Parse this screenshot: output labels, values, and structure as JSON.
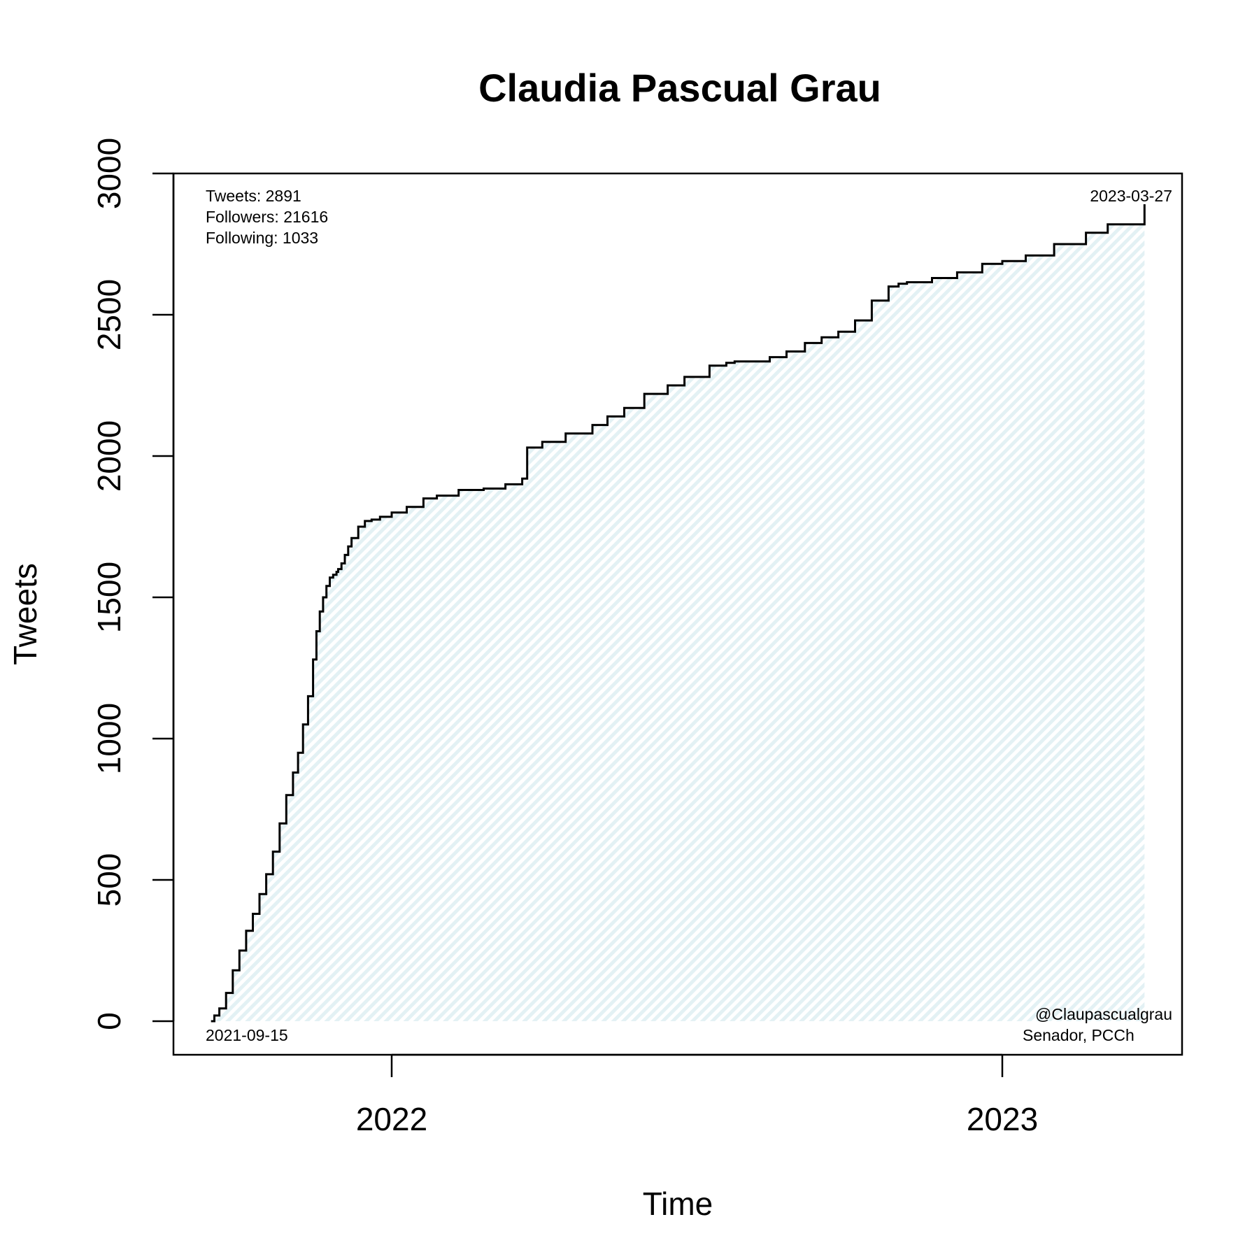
{
  "chart_data": {
    "type": "area",
    "title": "Claudia Pascual Grau",
    "xlabel": "Time",
    "ylabel": "Tweets",
    "ylim": [
      0,
      3000
    ],
    "xlim": [
      "2021-08-25",
      "2023-04-15"
    ],
    "y_ticks": [
      "0",
      "500",
      "1000",
      "1500",
      "2000",
      "2500",
      "3000"
    ],
    "x_ticks": [
      {
        "label": "2022",
        "date": "2022-01-01"
      },
      {
        "label": "2023",
        "date": "2023-01-01"
      }
    ],
    "grid": false,
    "fill_color": "#e3f1f4",
    "line_color": "#000000",
    "start_label": "2021-09-15",
    "end_label": "2023-03-27",
    "stats": {
      "tweets": "Tweets: 2891",
      "followers": "Followers: 21616",
      "following": "Following: 1033"
    },
    "account": {
      "handle": "@Claupascualgrau",
      "role": "Senador, PCCh"
    },
    "series": [
      {
        "x": [
          "2021-09-15",
          "2021-09-17",
          "2021-09-20",
          "2021-09-24",
          "2021-09-28",
          "2021-10-02",
          "2021-10-06",
          "2021-10-10",
          "2021-10-14",
          "2021-10-18",
          "2021-10-22",
          "2021-10-26",
          "2021-10-30",
          "2021-11-03",
          "2021-11-06",
          "2021-11-09",
          "2021-11-12",
          "2021-11-15",
          "2021-11-17",
          "2021-11-19",
          "2021-11-21",
          "2021-11-23",
          "2021-11-25",
          "2021-11-27",
          "2021-11-29",
          "2021-11-30",
          "2021-12-02",
          "2021-12-04",
          "2021-12-06",
          "2021-12-08",
          "2021-12-12",
          "2021-12-16",
          "2021-12-20",
          "2021-12-25",
          "2022-01-01",
          "2022-01-10",
          "2022-01-20",
          "2022-01-28",
          "2022-02-10",
          "2022-02-25",
          "2022-03-10",
          "2022-03-20",
          "2022-03-23",
          "2022-04-01",
          "2022-04-15",
          "2022-05-01",
          "2022-05-10",
          "2022-05-20",
          "2022-06-01",
          "2022-06-15",
          "2022-06-25",
          "2022-07-10",
          "2022-07-20",
          "2022-07-25",
          "2022-08-15",
          "2022-08-25",
          "2022-09-05",
          "2022-09-15",
          "2022-09-25",
          "2022-10-05",
          "2022-10-15",
          "2022-10-25",
          "2022-10-31",
          "2022-11-05",
          "2022-11-20",
          "2022-12-05",
          "2022-12-20",
          "2023-01-01",
          "2023-01-15",
          "2023-02-01",
          "2023-02-20",
          "2023-03-05",
          "2023-03-27"
        ],
        "y": [
          0,
          20,
          45,
          100,
          180,
          250,
          320,
          380,
          450,
          520,
          600,
          700,
          800,
          880,
          950,
          1050,
          1150,
          1280,
          1380,
          1450,
          1500,
          1540,
          1570,
          1580,
          1590,
          1600,
          1620,
          1650,
          1680,
          1710,
          1750,
          1770,
          1775,
          1785,
          1800,
          1820,
          1850,
          1860,
          1880,
          1885,
          1900,
          1920,
          2030,
          2050,
          2080,
          2110,
          2140,
          2170,
          2220,
          2250,
          2280,
          2320,
          2330,
          2335,
          2350,
          2370,
          2400,
          2420,
          2440,
          2480,
          2550,
          2600,
          2610,
          2615,
          2630,
          2650,
          2680,
          2690,
          2710,
          2750,
          2790,
          2820,
          2891
        ]
      }
    ]
  }
}
